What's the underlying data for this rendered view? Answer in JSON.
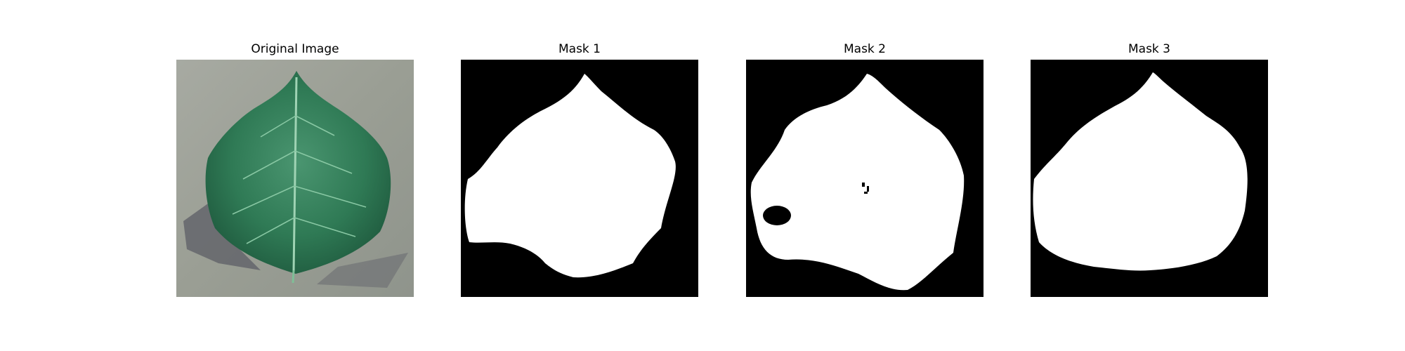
{
  "panels": [
    {
      "title": "Original Image",
      "content": "photo of a green leaf on a grey concrete surface"
    },
    {
      "title": "Mask 1",
      "content": "binary mask"
    },
    {
      "title": "Mask 2",
      "content": "binary mask"
    },
    {
      "title": "Mask 3",
      "content": "binary mask"
    }
  ],
  "colors": {
    "mask_background": "#000000",
    "mask_foreground": "#ffffff",
    "leaf": "#2e7a52",
    "ground": "#9a9e94"
  }
}
